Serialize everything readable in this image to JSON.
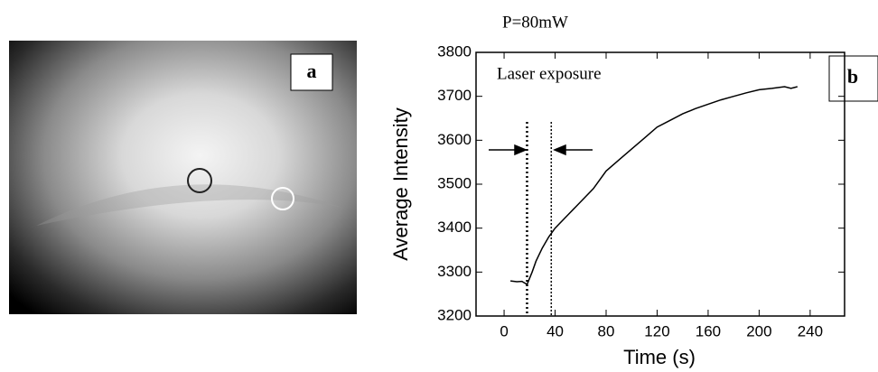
{
  "chart_data": {
    "type": "line",
    "title": "P=80mW",
    "panel_labels": [
      "a",
      "b"
    ],
    "x_label": "Time (s)",
    "y_label": "Average Intensity",
    "annotation": "Laser exposure",
    "exposure_lines": [
      18,
      37
    ],
    "xlim": [
      -22,
      267
    ],
    "ylim": [
      3200,
      3800
    ],
    "xticks": [
      0,
      40,
      80,
      120,
      160,
      200,
      240
    ],
    "yticks": [
      3200,
      3300,
      3400,
      3500,
      3600,
      3700,
      3800
    ],
    "x": [
      5,
      10,
      14,
      18,
      22,
      25,
      30,
      35,
      40,
      50,
      60,
      70,
      80,
      90,
      100,
      110,
      120,
      130,
      140,
      150,
      160,
      170,
      180,
      190,
      200,
      210,
      220,
      225,
      230
    ],
    "series": [
      {
        "name": "Average Intensity",
        "color": "#000000",
        "values": [
          3280,
          3278,
          3279,
          3272,
          3300,
          3325,
          3355,
          3380,
          3400,
          3430,
          3460,
          3490,
          3530,
          3555,
          3580,
          3605,
          3630,
          3645,
          3660,
          3672,
          3682,
          3692,
          3700,
          3708,
          3715,
          3718,
          3722,
          3718,
          3722
        ]
      }
    ]
  }
}
